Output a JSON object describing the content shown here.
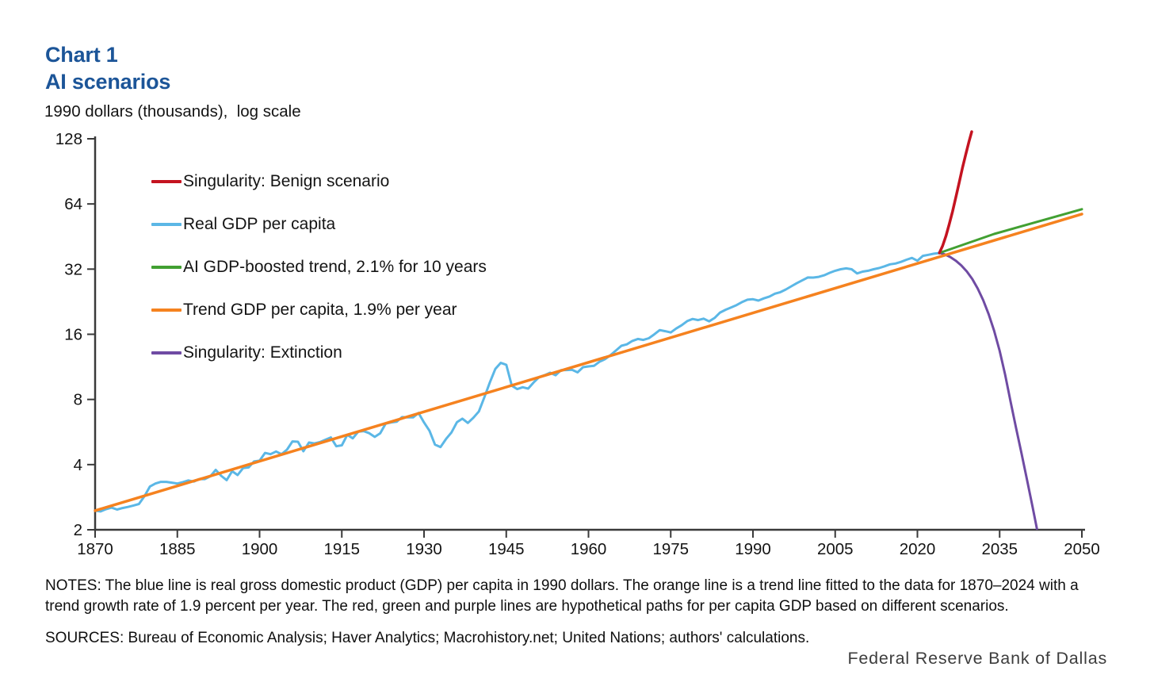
{
  "header": {
    "chart_label": "Chart 1",
    "title": "AI scenarios",
    "subtitle": "1990 dollars (thousands),  log scale"
  },
  "legend": {
    "items": [
      {
        "label": "Singularity: Benign scenario",
        "color": "#c41320"
      },
      {
        "label": "Real GDP per capita",
        "color": "#5bb7e6"
      },
      {
        "label": "AI GDP-boosted trend, 2.1% for 10 years",
        "color": "#42a032"
      },
      {
        "label": "Trend GDP per capita, 1.9% per year",
        "color": "#f5821f"
      },
      {
        "label": "Singularity: Extinction",
        "color": "#6f4ba3"
      }
    ]
  },
  "footer": {
    "notes": "NOTES: The blue line is real gross domestic product (GDP) per capita in 1990 dollars. The orange line is a trend line fitted to the data for 1870–2024 with a trend growth rate of 1.9 percent per year. The red, green and purple lines are hypothetical paths for per capita GDP based on different scenarios.",
    "sources": "SOURCES: Bureau of Economic Analysis; Haver Analytics; Macrohistory.net; United Nations; authors' calculations.",
    "branding": "Federal Reserve Bank of Dallas"
  },
  "chart_data": {
    "type": "line",
    "title": "AI scenarios",
    "ylabel": "1990 dollars (thousands), log scale",
    "log_scale": true,
    "xlim": [
      1870,
      2050
    ],
    "ylim": [
      2,
      128
    ],
    "x_ticks": [
      1870,
      1885,
      1900,
      1915,
      1930,
      1945,
      1960,
      1975,
      1990,
      2005,
      2020,
      2035,
      2050
    ],
    "y_ticks": [
      2,
      4,
      8,
      16,
      32,
      64,
      128
    ],
    "grid": false,
    "legend_position": "upper-left",
    "axis_color": "#3a3a3a",
    "series": [
      {
        "name": "Real GDP per capita",
        "color": "#5bb7e6",
        "width": 3,
        "start_year": 1870,
        "values": [
          2.45,
          2.43,
          2.49,
          2.53,
          2.48,
          2.52,
          2.55,
          2.59,
          2.63,
          2.86,
          3.17,
          3.27,
          3.33,
          3.33,
          3.3,
          3.27,
          3.32,
          3.38,
          3.34,
          3.43,
          3.43,
          3.53,
          3.78,
          3.55,
          3.39,
          3.73,
          3.58,
          3.86,
          3.88,
          4.14,
          4.17,
          4.53,
          4.47,
          4.6,
          4.47,
          4.69,
          5.12,
          5.1,
          4.61,
          5.06,
          5.01,
          5.08,
          5.21,
          5.34,
          4.86,
          4.91,
          5.49,
          5.29,
          5.68,
          5.71,
          5.59,
          5.37,
          5.58,
          6.19,
          6.26,
          6.31,
          6.63,
          6.61,
          6.61,
          6.93,
          6.26,
          5.73,
          4.95,
          4.82,
          5.25,
          5.63,
          6.28,
          6.52,
          6.23,
          6.59,
          7.04,
          8.18,
          9.58,
          11.06,
          11.81,
          11.56,
          9.26,
          8.93,
          9.11,
          8.98,
          9.59,
          10.15,
          10.35,
          10.63,
          10.35,
          10.93,
          10.94,
          10.96,
          10.67,
          11.27,
          11.37,
          11.44,
          11.94,
          12.28,
          12.81,
          13.46,
          14.16,
          14.37,
          14.9,
          15.22,
          15.07,
          15.34,
          15.98,
          16.73,
          16.53,
          16.32,
          17.02,
          17.61,
          18.41,
          18.83,
          18.61,
          18.89,
          18.36,
          19.03,
          20.16,
          20.76,
          21.28,
          21.83,
          22.54,
          23.11,
          23.23,
          22.89,
          23.45,
          23.91,
          24.64,
          25.04,
          25.76,
          26.65,
          27.54,
          28.43,
          29.26,
          29.24,
          29.46,
          29.96,
          30.76,
          31.46,
          31.96,
          32.26,
          31.96,
          30.56,
          31.16,
          31.46,
          31.96,
          32.36,
          32.96,
          33.66,
          33.96,
          34.56,
          35.36,
          36.06,
          34.96,
          36.86,
          37.26,
          37.7,
          38.0
        ]
      },
      {
        "name": "Singularity: Extinction",
        "color": "#6f4ba3",
        "width": 3,
        "points": [
          [
            2024.3,
            37.9
          ],
          [
            2025,
            37.4
          ],
          [
            2026,
            36.4
          ],
          [
            2027,
            35.0
          ],
          [
            2028,
            33.3
          ],
          [
            2029,
            31.2
          ],
          [
            2030,
            28.8
          ],
          [
            2031,
            26.0
          ],
          [
            2032,
            23.0
          ],
          [
            2033,
            19.8
          ],
          [
            2034,
            16.6
          ],
          [
            2035,
            13.4
          ],
          [
            2036,
            10.4
          ],
          [
            2037,
            7.8
          ],
          [
            2038,
            5.9
          ],
          [
            2039,
            4.5
          ],
          [
            2040,
            3.4
          ],
          [
            2041,
            2.55
          ],
          [
            2041.8,
            2.02
          ]
        ]
      },
      {
        "name": "Trend GDP per capita, 1.9% per year",
        "color": "#f5821f",
        "width": 3.5,
        "points": [
          [
            1870,
            2.45
          ],
          [
            2050,
            57.5
          ]
        ]
      },
      {
        "name": "AI GDP-boosted trend, 2.1% for 10 years",
        "color": "#42a032",
        "width": 3,
        "points": [
          [
            2024,
            38
          ],
          [
            2034,
            46.5
          ],
          [
            2050,
            60.5
          ]
        ]
      },
      {
        "name": "Singularity: Benign scenario",
        "color": "#c41320",
        "width": 3.5,
        "points": [
          [
            2024,
            38
          ],
          [
            2024.6,
            41
          ],
          [
            2025.2,
            45.5
          ],
          [
            2025.8,
            51.5
          ],
          [
            2026.4,
            59
          ],
          [
            2027,
            68.5
          ],
          [
            2027.6,
            80
          ],
          [
            2028.2,
            93.5
          ],
          [
            2028.8,
            108
          ],
          [
            2029.4,
            124
          ],
          [
            2029.9,
            138
          ]
        ]
      }
    ]
  }
}
